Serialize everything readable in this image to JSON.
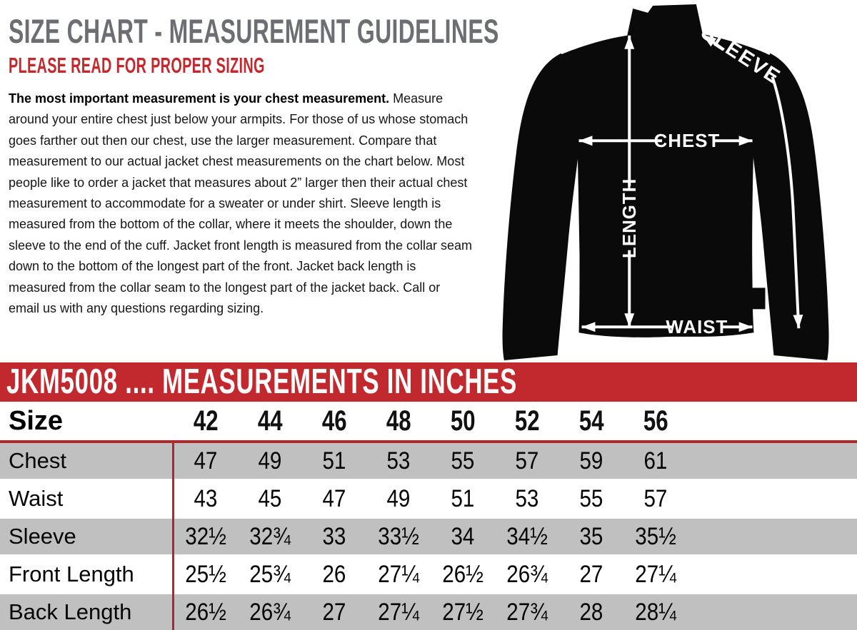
{
  "header": {
    "title": "SIZE CHART - MEASUREMENT GUIDELINES",
    "subtitle": "PLEASE READ FOR PROPER SIZING"
  },
  "intro": {
    "lead": "The most important measurement is your chest measurement.",
    "body": " Measure around your entire chest just below your armpits.  For those of us whose stomach goes farther out then our chest, use the larger measurement. Compare that measurement to our actual jacket chest measurements on the chart below. Most people like to order a jacket that measures about 2” larger then their actual chest measurement to accommodate for a sweater or under shirt. Sleeve length is measured from the bottom of the collar, where it meets the shoulder, down the sleeve to the end of the cuff.  Jacket front length is measured from the collar seam down to the bottom of the longest part of the front. Jacket back length is measured from the collar seam to the longest part of the jacket back.  Call or email us with any questions regarding sizing."
  },
  "diagram": {
    "labels": {
      "sleeve": "SLEEVE",
      "chest": "CHEST",
      "length": "LENGTH",
      "waist": "WAIST"
    }
  },
  "banner": {
    "text": "JKM5008 .... MEASUREMENTS IN INCHES"
  },
  "chart_data": {
    "type": "table",
    "title": "JKM5008 .... MEASUREMENTS IN INCHES",
    "header_label": "Size",
    "sizes": [
      "42",
      "44",
      "46",
      "48",
      "50",
      "52",
      "54",
      "56"
    ],
    "rows": [
      {
        "label": "Chest",
        "values": [
          "47",
          "49",
          "51",
          "53",
          "55",
          "57",
          "59",
          "61"
        ]
      },
      {
        "label": "Waist",
        "values": [
          "43",
          "45",
          "47",
          "49",
          "51",
          "53",
          "55",
          "57"
        ]
      },
      {
        "label": "Sleeve",
        "values": [
          "32½",
          "32¾",
          "33",
          "33½",
          "34",
          "34½",
          "35",
          "35½"
        ]
      },
      {
        "label": "Front Length",
        "values": [
          "25½",
          "25¾",
          "26",
          "27¼",
          "26½",
          "26¾",
          "27",
          "27¼"
        ]
      },
      {
        "label": "Back Length",
        "values": [
          "26½",
          "26¾",
          "27",
          "27¼",
          "27½",
          "27¾",
          "28",
          "28¼"
        ]
      }
    ]
  },
  "colors": {
    "accent_red": "#c2292f",
    "line_red": "#b3262c",
    "row_gray": "#c1c0c0",
    "heading_gray": "#6d6e71",
    "jacket_black": "#0a0a0a"
  }
}
